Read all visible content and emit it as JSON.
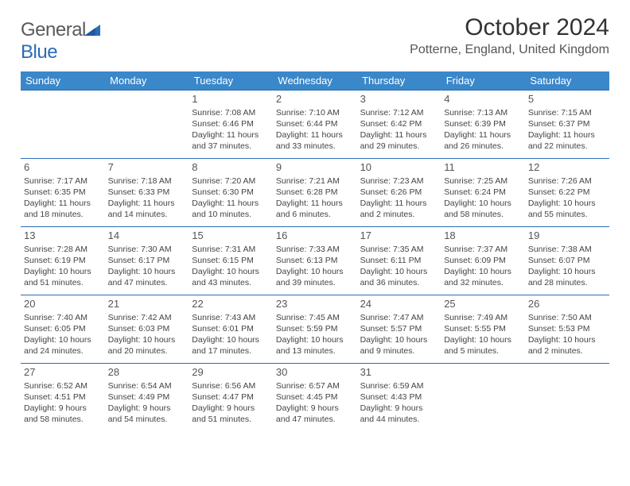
{
  "logo": {
    "text1": "General",
    "text2": "Blue"
  },
  "title": "October 2024",
  "location": "Potterne, England, United Kingdom",
  "colors": {
    "header_bg": "#3a87c9",
    "header_text": "#ffffff",
    "row_border": "#2a6db5",
    "body_text": "#444444",
    "page_bg": "#ffffff",
    "logo_gray": "#5a5a5a",
    "logo_blue": "#2a6db5"
  },
  "day_headers": [
    "Sunday",
    "Monday",
    "Tuesday",
    "Wednesday",
    "Thursday",
    "Friday",
    "Saturday"
  ],
  "weeks": [
    [
      null,
      null,
      {
        "n": "1",
        "sr": "7:08 AM",
        "ss": "6:46 PM",
        "dl": "11 hours and 37 minutes."
      },
      {
        "n": "2",
        "sr": "7:10 AM",
        "ss": "6:44 PM",
        "dl": "11 hours and 33 minutes."
      },
      {
        "n": "3",
        "sr": "7:12 AM",
        "ss": "6:42 PM",
        "dl": "11 hours and 29 minutes."
      },
      {
        "n": "4",
        "sr": "7:13 AM",
        "ss": "6:39 PM",
        "dl": "11 hours and 26 minutes."
      },
      {
        "n": "5",
        "sr": "7:15 AM",
        "ss": "6:37 PM",
        "dl": "11 hours and 22 minutes."
      }
    ],
    [
      {
        "n": "6",
        "sr": "7:17 AM",
        "ss": "6:35 PM",
        "dl": "11 hours and 18 minutes."
      },
      {
        "n": "7",
        "sr": "7:18 AM",
        "ss": "6:33 PM",
        "dl": "11 hours and 14 minutes."
      },
      {
        "n": "8",
        "sr": "7:20 AM",
        "ss": "6:30 PM",
        "dl": "11 hours and 10 minutes."
      },
      {
        "n": "9",
        "sr": "7:21 AM",
        "ss": "6:28 PM",
        "dl": "11 hours and 6 minutes."
      },
      {
        "n": "10",
        "sr": "7:23 AM",
        "ss": "6:26 PM",
        "dl": "11 hours and 2 minutes."
      },
      {
        "n": "11",
        "sr": "7:25 AM",
        "ss": "6:24 PM",
        "dl": "10 hours and 58 minutes."
      },
      {
        "n": "12",
        "sr": "7:26 AM",
        "ss": "6:22 PM",
        "dl": "10 hours and 55 minutes."
      }
    ],
    [
      {
        "n": "13",
        "sr": "7:28 AM",
        "ss": "6:19 PM",
        "dl": "10 hours and 51 minutes."
      },
      {
        "n": "14",
        "sr": "7:30 AM",
        "ss": "6:17 PM",
        "dl": "10 hours and 47 minutes."
      },
      {
        "n": "15",
        "sr": "7:31 AM",
        "ss": "6:15 PM",
        "dl": "10 hours and 43 minutes."
      },
      {
        "n": "16",
        "sr": "7:33 AM",
        "ss": "6:13 PM",
        "dl": "10 hours and 39 minutes."
      },
      {
        "n": "17",
        "sr": "7:35 AM",
        "ss": "6:11 PM",
        "dl": "10 hours and 36 minutes."
      },
      {
        "n": "18",
        "sr": "7:37 AM",
        "ss": "6:09 PM",
        "dl": "10 hours and 32 minutes."
      },
      {
        "n": "19",
        "sr": "7:38 AM",
        "ss": "6:07 PM",
        "dl": "10 hours and 28 minutes."
      }
    ],
    [
      {
        "n": "20",
        "sr": "7:40 AM",
        "ss": "6:05 PM",
        "dl": "10 hours and 24 minutes."
      },
      {
        "n": "21",
        "sr": "7:42 AM",
        "ss": "6:03 PM",
        "dl": "10 hours and 20 minutes."
      },
      {
        "n": "22",
        "sr": "7:43 AM",
        "ss": "6:01 PM",
        "dl": "10 hours and 17 minutes."
      },
      {
        "n": "23",
        "sr": "7:45 AM",
        "ss": "5:59 PM",
        "dl": "10 hours and 13 minutes."
      },
      {
        "n": "24",
        "sr": "7:47 AM",
        "ss": "5:57 PM",
        "dl": "10 hours and 9 minutes."
      },
      {
        "n": "25",
        "sr": "7:49 AM",
        "ss": "5:55 PM",
        "dl": "10 hours and 5 minutes."
      },
      {
        "n": "26",
        "sr": "7:50 AM",
        "ss": "5:53 PM",
        "dl": "10 hours and 2 minutes."
      }
    ],
    [
      {
        "n": "27",
        "sr": "6:52 AM",
        "ss": "4:51 PM",
        "dl": "9 hours and 58 minutes."
      },
      {
        "n": "28",
        "sr": "6:54 AM",
        "ss": "4:49 PM",
        "dl": "9 hours and 54 minutes."
      },
      {
        "n": "29",
        "sr": "6:56 AM",
        "ss": "4:47 PM",
        "dl": "9 hours and 51 minutes."
      },
      {
        "n": "30",
        "sr": "6:57 AM",
        "ss": "4:45 PM",
        "dl": "9 hours and 47 minutes."
      },
      {
        "n": "31",
        "sr": "6:59 AM",
        "ss": "4:43 PM",
        "dl": "9 hours and 44 minutes."
      },
      null,
      null
    ]
  ],
  "labels": {
    "sunrise": "Sunrise:",
    "sunset": "Sunset:",
    "daylight": "Daylight:"
  }
}
